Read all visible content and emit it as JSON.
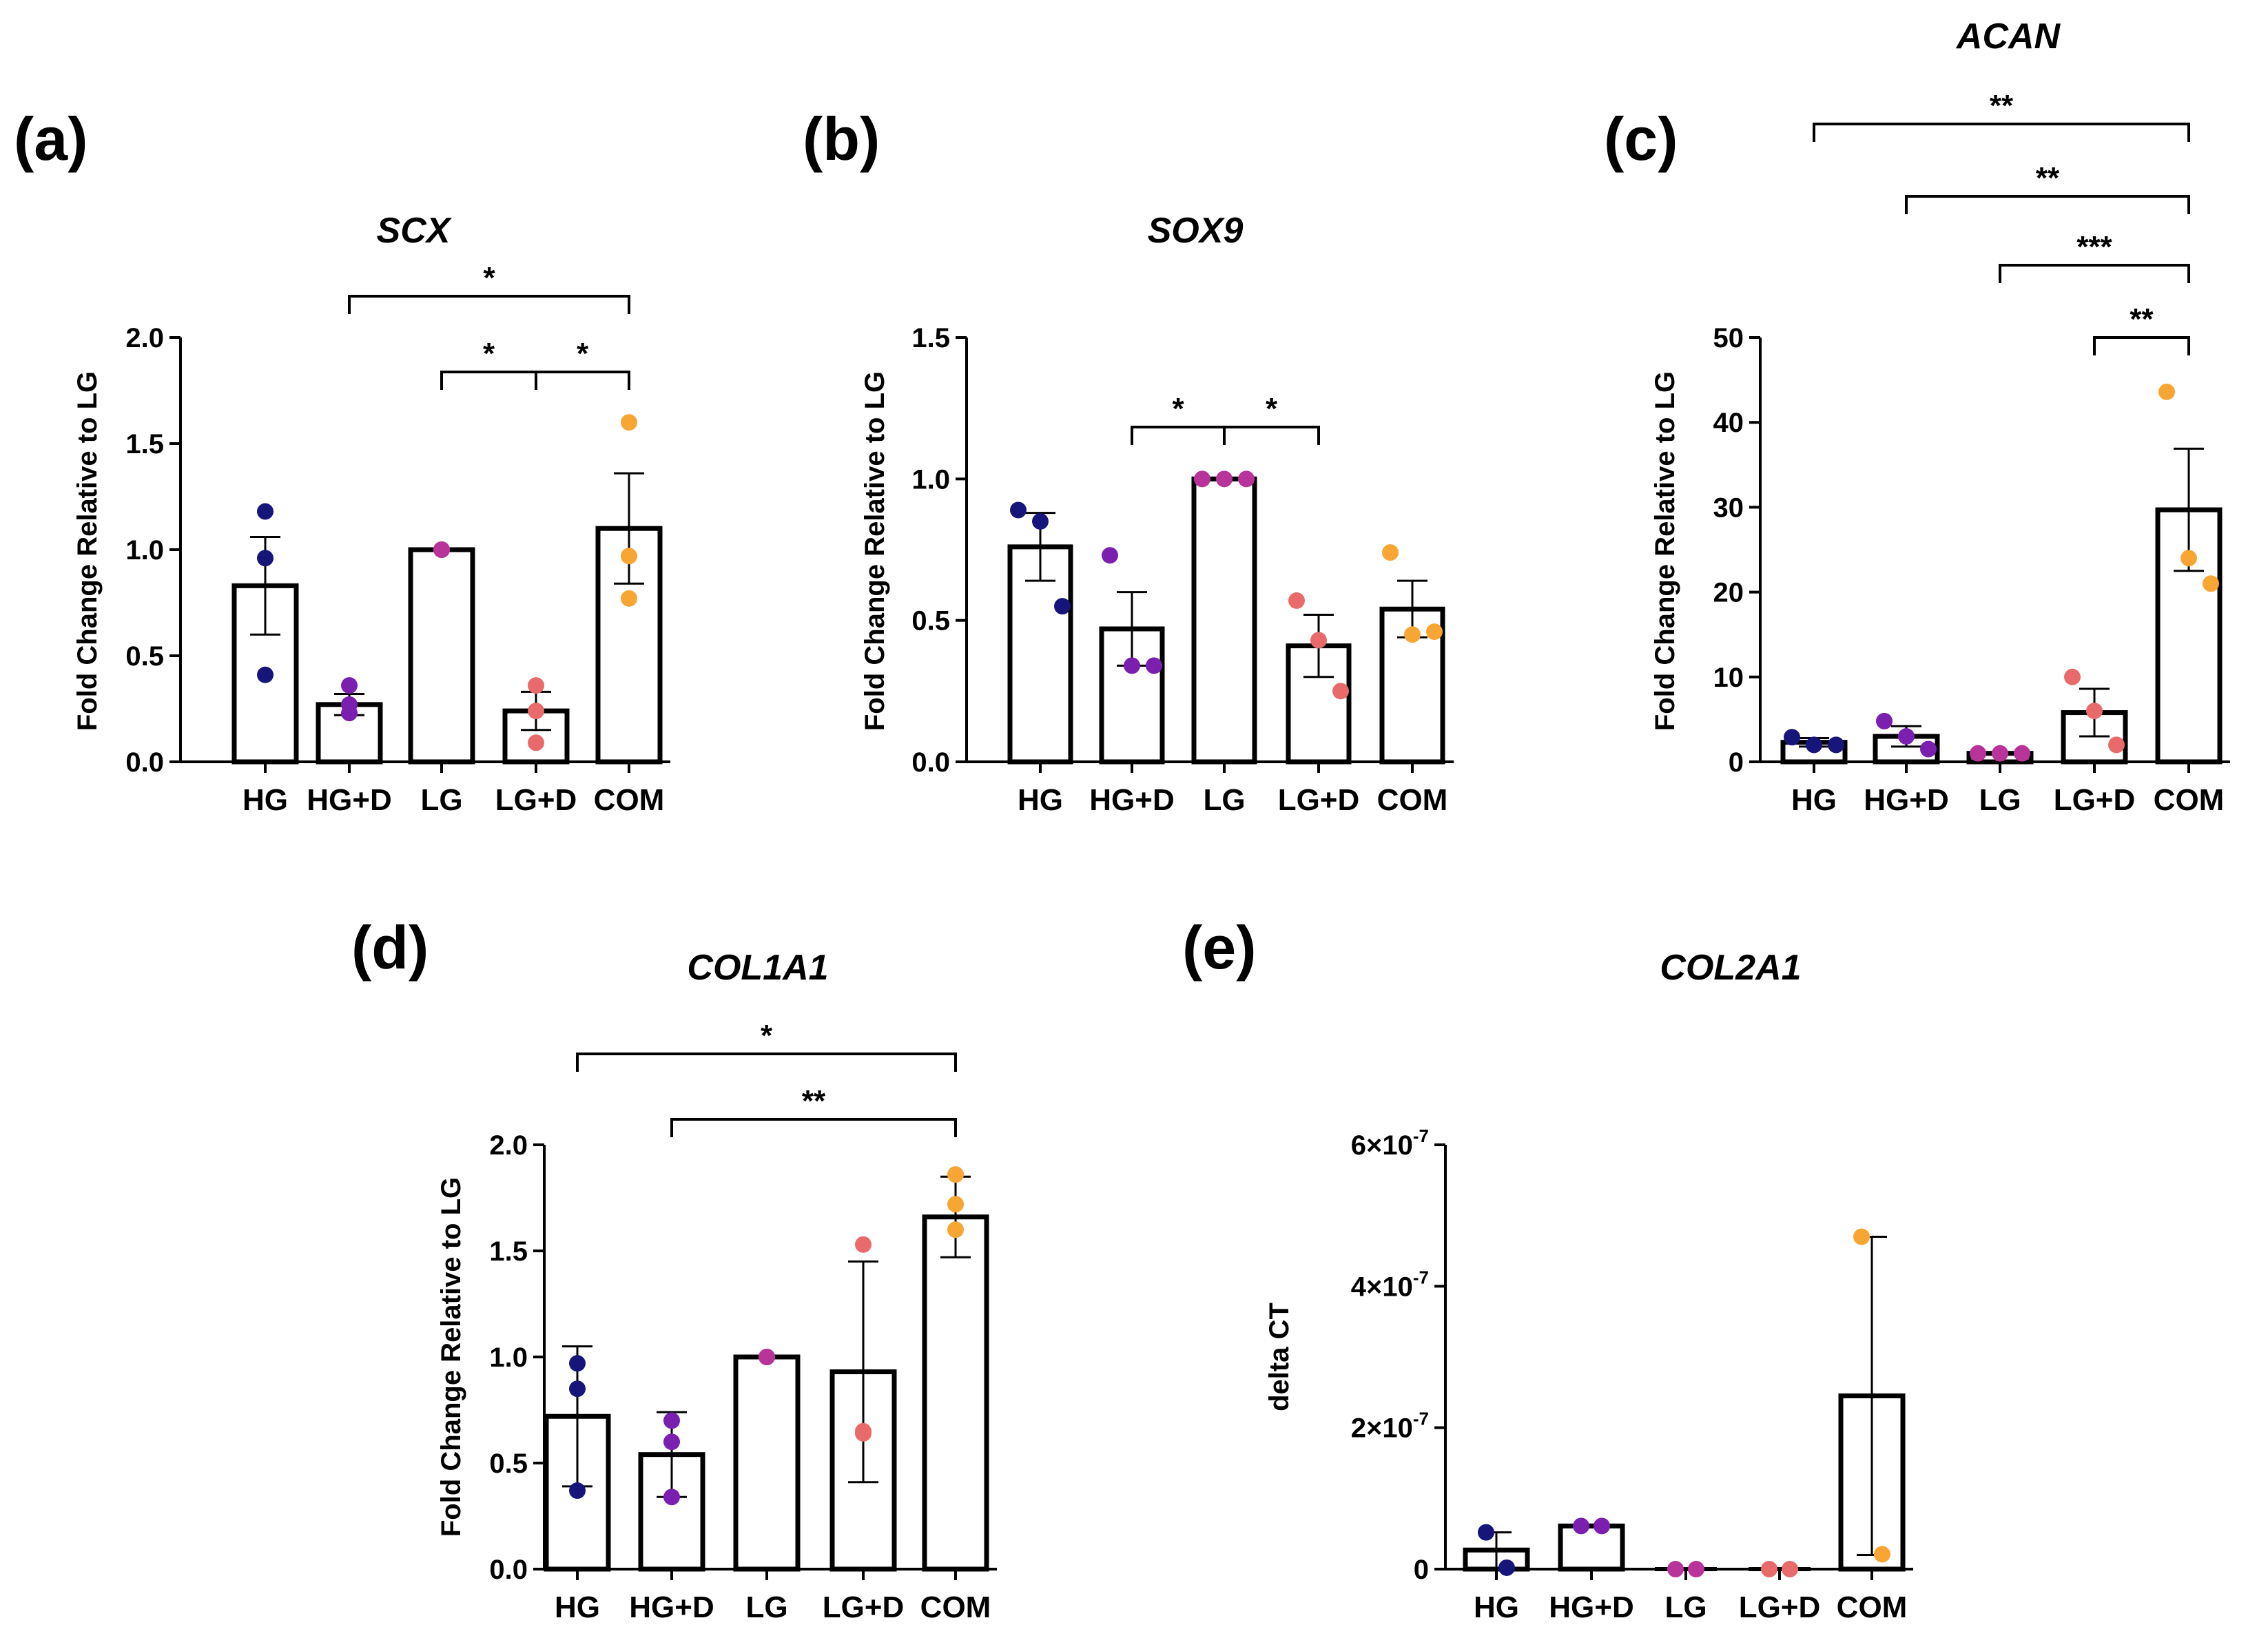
{
  "colors": {
    "HG": "#15157a",
    "HG+D": "#7a1fb0",
    "LG": "#b8339a",
    "LG+D": "#e86a6a",
    "COM": "#f7a533"
  },
  "chart_data": [
    {
      "panel": "(a)",
      "type": "bar",
      "title": "SCX",
      "ylabel": "Fold Change Relative to LG",
      "categories": [
        "HG",
        "HG+D",
        "LG",
        "LG+D",
        "COM"
      ],
      "values": [
        0.83,
        0.27,
        1.0,
        0.24,
        1.1
      ],
      "errors": [
        0.23,
        0.05,
        0.0,
        0.09,
        0.26
      ],
      "points": [
        [
          1.18,
          0.96,
          0.41
        ],
        [
          0.36,
          0.27,
          0.23
        ],
        [
          1.0,
          1.0,
          1.0
        ],
        [
          0.36,
          0.24,
          0.09
        ],
        [
          1.6,
          0.97,
          0.77
        ]
      ],
      "ylim": [
        0,
        2.0
      ],
      "yticks": [
        {
          "v": 0,
          "t": "0.0"
        },
        {
          "v": 0.5,
          "t": "0.5"
        },
        {
          "v": 1.0,
          "t": "1.0"
        },
        {
          "v": 1.5,
          "t": "1.5"
        },
        {
          "v": 2.0,
          "t": "2.0"
        }
      ],
      "sig": [
        {
          "from": 1,
          "to": 4,
          "text": "*"
        },
        {
          "from": 2,
          "to": 3,
          "text": "*"
        },
        {
          "from": 3,
          "to": 4,
          "text": "*"
        }
      ]
    },
    {
      "panel": "(b)",
      "type": "bar",
      "title": "SOX9",
      "ylabel": "Fold Change Relative to LG",
      "categories": [
        "HG",
        "HG+D",
        "LG",
        "LG+D",
        "COM"
      ],
      "values": [
        0.76,
        0.47,
        1.0,
        0.41,
        0.54
      ],
      "errors": [
        0.12,
        0.13,
        0.0,
        0.11,
        0.1
      ],
      "points": [
        [
          0.89,
          0.85,
          0.55
        ],
        [
          0.73,
          0.34,
          0.34
        ],
        [
          1.0,
          1.0,
          1.0
        ],
        [
          0.57,
          0.43,
          0.25
        ],
        [
          0.74,
          0.45,
          0.46
        ]
      ],
      "ylim": [
        0,
        1.5
      ],
      "yticks": [
        {
          "v": 0,
          "t": "0.0"
        },
        {
          "v": 0.5,
          "t": "0.5"
        },
        {
          "v": 1.0,
          "t": "1.0"
        },
        {
          "v": 1.5,
          "t": "1.5"
        }
      ],
      "sig": [
        {
          "from": 1,
          "to": 2,
          "text": "*"
        },
        {
          "from": 2,
          "to": 3,
          "text": "*"
        }
      ]
    },
    {
      "panel": "(c)",
      "type": "bar",
      "title": "ACAN",
      "ylabel": "Fold Change Relative to LG",
      "categories": [
        "HG",
        "HG+D",
        "LG",
        "LG+D",
        "COM"
      ],
      "values": [
        2.3,
        3.0,
        1.0,
        5.8,
        29.7
      ],
      "errors": [
        0.5,
        1.2,
        0.0,
        2.8,
        7.2
      ],
      "points": [
        [
          2.9,
          2.0,
          2.0
        ],
        [
          4.8,
          3.0,
          1.5
        ],
        [
          1.0,
          1.0,
          1.0
        ],
        [
          10.0,
          6.0,
          2.0
        ],
        [
          43.6,
          24.0,
          21.0
        ]
      ],
      "ylim": [
        0,
        50
      ],
      "yticks": [
        {
          "v": 0,
          "t": "0"
        },
        {
          "v": 10,
          "t": "10"
        },
        {
          "v": 20,
          "t": "20"
        },
        {
          "v": 30,
          "t": "30"
        },
        {
          "v": 40,
          "t": "40"
        },
        {
          "v": 50,
          "t": "50"
        }
      ],
      "sig": [
        {
          "from": 0,
          "to": 4,
          "text": "**"
        },
        {
          "from": 1,
          "to": 4,
          "text": "**"
        },
        {
          "from": 2,
          "to": 4,
          "text": "***"
        },
        {
          "from": 3,
          "to": 4,
          "text": "**"
        }
      ]
    },
    {
      "panel": "(d)",
      "type": "bar",
      "title": "COL1A1",
      "ylabel": "Fold Change Relative to LG",
      "categories": [
        "HG",
        "HG+D",
        "LG",
        "LG+D",
        "COM"
      ],
      "values": [
        0.72,
        0.54,
        1.0,
        0.93,
        1.66
      ],
      "errors": [
        0.33,
        0.2,
        0.0,
        0.52,
        0.19
      ],
      "points": [
        [
          0.97,
          0.85,
          0.37
        ],
        [
          0.7,
          0.6,
          0.34
        ],
        [
          1.0,
          1.0,
          1.0
        ],
        [
          1.53,
          0.65,
          0.64
        ],
        [
          1.86,
          1.72,
          1.6
        ]
      ],
      "ylim": [
        0,
        2.0
      ],
      "yticks": [
        {
          "v": 0,
          "t": "0.0"
        },
        {
          "v": 0.5,
          "t": "0.5"
        },
        {
          "v": 1.0,
          "t": "1.0"
        },
        {
          "v": 1.5,
          "t": "1.5"
        },
        {
          "v": 2.0,
          "t": "2.0"
        }
      ],
      "sig": [
        {
          "from": 0,
          "to": 4,
          "text": "*"
        },
        {
          "from": 1,
          "to": 4,
          "text": "**"
        }
      ]
    },
    {
      "panel": "(e)",
      "type": "bar",
      "title": "COL2A1",
      "ylabel": "delta CT",
      "categories": [
        "HG",
        "HG+D",
        "LG",
        "LG+D",
        "COM"
      ],
      "values": [
        2.7e-08,
        6.1e-08,
        0,
        0,
        2.45e-07
      ],
      "errors": [
        2.5e-08,
        2e-09,
        0,
        0,
        2.25e-07
      ],
      "points": [
        [
          5.2e-08,
          2e-09
        ],
        [
          6.1e-08,
          6.1e-08
        ],
        [
          0,
          0
        ],
        [
          0,
          0
        ],
        [
          4.7e-07,
          2.1e-08
        ]
      ],
      "ylim": [
        0,
        6e-07
      ],
      "yticks": [
        {
          "v": 0,
          "t": "0"
        },
        {
          "v": 2e-07,
          "t": "2×10",
          "sup": "-7"
        },
        {
          "v": 4e-07,
          "t": "4×10",
          "sup": "-7"
        },
        {
          "v": 6e-07,
          "t": "6×10",
          "sup": "-7"
        }
      ],
      "sig": []
    }
  ]
}
